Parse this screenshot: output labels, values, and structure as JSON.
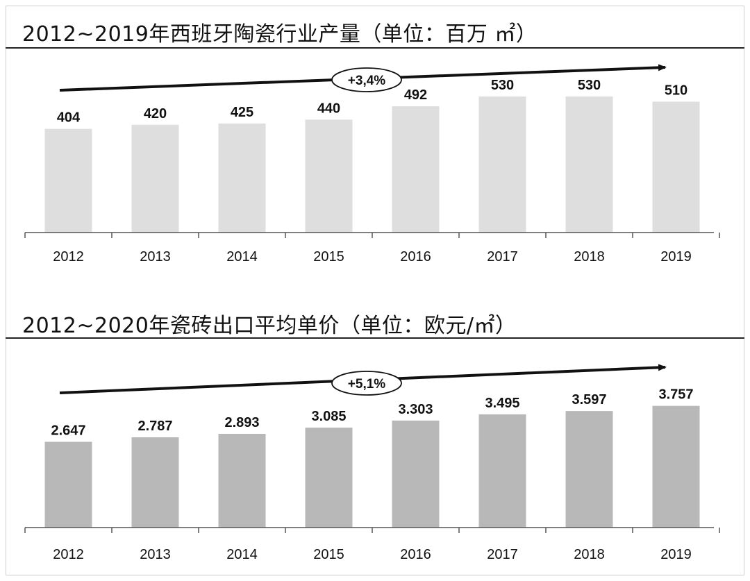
{
  "chart_data": [
    {
      "type": "bar",
      "title": "2012~2019年西班牙陶瓷行业产量（单位：百万 ㎡）",
      "categories": [
        "2012",
        "2013",
        "2014",
        "2015",
        "2016",
        "2017",
        "2018",
        "2019"
      ],
      "values": [
        404,
        420,
        425,
        440,
        492,
        530,
        530,
        510
      ],
      "value_labels": [
        "404",
        "420",
        "425",
        "440",
        "492",
        "530",
        "530",
        "510"
      ],
      "ylim": [
        0,
        560
      ],
      "bar_color": "#dedede",
      "trend_label": "+3,4%"
    },
    {
      "type": "bar",
      "title": "2012~2020年瓷砖出口平均单价（单位：欧元/㎡）",
      "categories": [
        "2012",
        "2013",
        "2014",
        "2015",
        "2016",
        "2017",
        "2018",
        "2019"
      ],
      "values": [
        2.647,
        2.787,
        2.893,
        3.085,
        3.303,
        3.495,
        3.597,
        3.757
      ],
      "value_labels": [
        "2.647",
        "2.787",
        "2.893",
        "3.085",
        "3.303",
        "3.495",
        "3.597",
        "3.757"
      ],
      "ylim": [
        0,
        4.5
      ],
      "bar_color": "#b8b8b8",
      "trend_label": "+5,1%"
    }
  ]
}
